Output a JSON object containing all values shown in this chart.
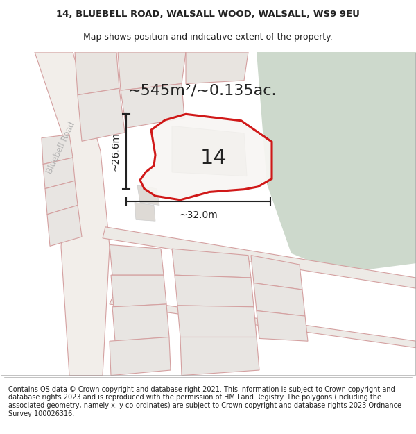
{
  "title_line1": "14, BLUEBELL ROAD, WALSALL WOOD, WALSALL, WS9 9EU",
  "title_line2": "Map shows position and indicative extent of the property.",
  "area_label": "~545m²/~0.135ac.",
  "number_label": "14",
  "dim_height": "~26.6m",
  "dim_width": "~32.0m",
  "road_label": "Bluebell Road",
  "footer_text": "Contains OS data © Crown copyright and database right 2021. This information is subject to Crown copyright and database rights 2023 and is reproduced with the permission of HM Land Registry. The polygons (including the associated geometry, namely x, y co-ordinates) are subject to Crown copyright and database rights 2023 Ordnance Survey 100026316.",
  "bg_color": "#f5f4f1",
  "map_bg": "#ede9e4",
  "green_area_color": "#cdd9cc",
  "plot_outline": "#cc0000",
  "dim_line_color": "#222222",
  "title_fontsize": 9.5,
  "footer_fontsize": 7.0,
  "area_fontsize": 16,
  "number_fontsize": 22
}
